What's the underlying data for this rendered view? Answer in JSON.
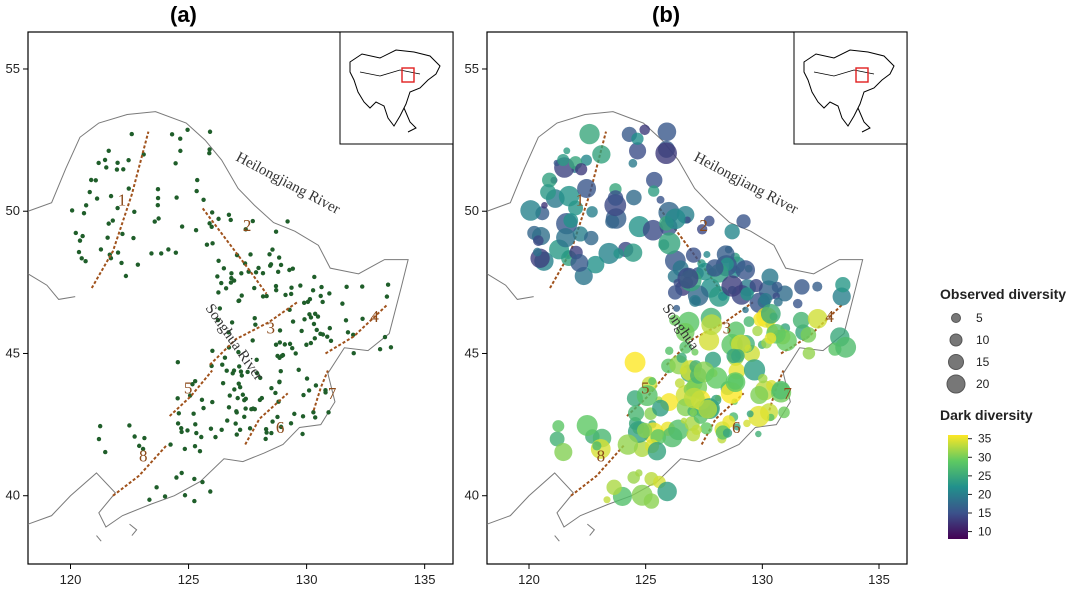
{
  "panels": [
    {
      "label": "(a)"
    },
    {
      "label": "(b)"
    }
  ],
  "axes": {
    "x_ticks": [
      120,
      125,
      130,
      135
    ],
    "y_ticks": [
      40,
      45,
      50,
      55
    ]
  },
  "map_labels": {
    "heilongjiang": "Heilongjiang River",
    "songhua_a": "Songhua River",
    "songhua_b": "Songhua"
  },
  "region_numbers": [
    "1",
    "2",
    "3",
    "4",
    "5",
    "6",
    "7",
    "8"
  ],
  "legend": {
    "observed_title": "Observed diversity",
    "observed_sizes": [
      5,
      10,
      15,
      20
    ],
    "dark_title": "Dark diversity",
    "dark_ticks": [
      35,
      30,
      25,
      20,
      15,
      10
    ],
    "dark_range": [
      8,
      36
    ]
  },
  "colors": {
    "site_dot": "#1f5e2a",
    "divide_line": "#a0521c",
    "inset_region": "#e02020",
    "colormap": [
      "#440154",
      "#3b528b",
      "#21908c",
      "#5ec962",
      "#fde725"
    ]
  }
}
